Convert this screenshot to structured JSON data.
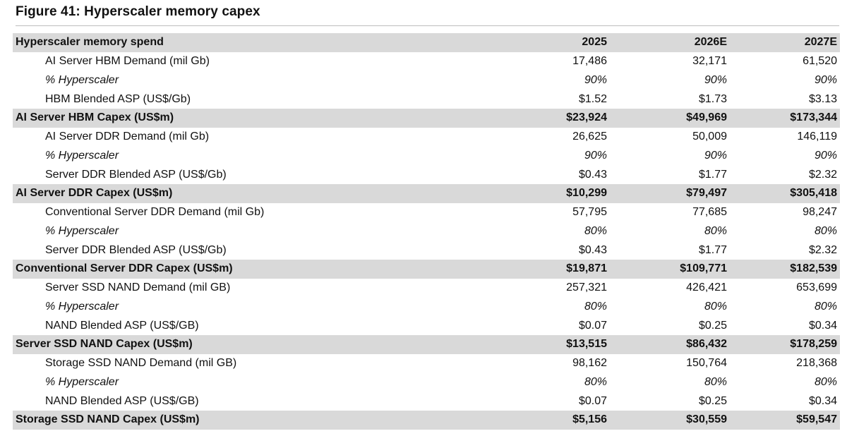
{
  "figure_title": "Figure 41: Hyperscaler memory capex",
  "table": {
    "header": {
      "label": "Hyperscaler memory spend",
      "years": [
        "2025",
        "2026E",
        "2027E"
      ]
    },
    "rows": [
      {
        "label": "AI Server HBM Demand (mil Gb)",
        "v": [
          "17,486",
          "32,171",
          "61,520"
        ]
      },
      {
        "label": "% Hyperscaler",
        "v": [
          "90%",
          "90%",
          "90%"
        ]
      },
      {
        "label": "HBM Blended ASP (US$/Gb)",
        "v": [
          "$1.52",
          "$1.73",
          "$3.13"
        ]
      },
      {
        "label": "AI Server HBM Capex (US$m)",
        "v": [
          "$23,924",
          "$49,969",
          "$173,344"
        ]
      },
      {
        "label": "AI Server DDR Demand (mil Gb)",
        "v": [
          "26,625",
          "50,009",
          "146,119"
        ]
      },
      {
        "label": "% Hyperscaler",
        "v": [
          "90%",
          "90%",
          "90%"
        ]
      },
      {
        "label": "Server DDR Blended ASP (US$/Gb)",
        "v": [
          "$0.43",
          "$1.77",
          "$2.32"
        ]
      },
      {
        "label": "AI Server DDR Capex (US$m)",
        "v": [
          "$10,299",
          "$79,497",
          "$305,418"
        ]
      },
      {
        "label": "Conventional Server DDR Demand (mil Gb)",
        "v": [
          "57,795",
          "77,685",
          "98,247"
        ]
      },
      {
        "label": "% Hyperscaler",
        "v": [
          "80%",
          "80%",
          "80%"
        ]
      },
      {
        "label": "Server DDR Blended ASP (US$/Gb)",
        "v": [
          "$0.43",
          "$1.77",
          "$2.32"
        ]
      },
      {
        "label": "Conventional Server DDR Capex (US$m)",
        "v": [
          "$19,871",
          "$109,771",
          "$182,539"
        ]
      },
      {
        "label": "Server SSD NAND Demand (mil GB)",
        "v": [
          "257,321",
          "426,421",
          "653,699"
        ]
      },
      {
        "label": "% Hyperscaler",
        "v": [
          "80%",
          "80%",
          "80%"
        ]
      },
      {
        "label": "NAND Blended ASP (US$/GB)",
        "v": [
          "$0.07",
          "$0.25",
          "$0.34"
        ]
      },
      {
        "label": "Server SSD NAND Capex (US$m)",
        "v": [
          "$13,515",
          "$86,432",
          "$178,259"
        ]
      },
      {
        "label": "Storage SSD NAND Demand (mil GB)",
        "v": [
          "98,162",
          "150,764",
          "218,368"
        ]
      },
      {
        "label": "% Hyperscaler",
        "v": [
          "80%",
          "80%",
          "80%"
        ]
      },
      {
        "label": "NAND Blended ASP (US$/GB)",
        "v": [
          "$0.07",
          "$0.25",
          "$0.34"
        ]
      },
      {
        "label": "Storage SSD NAND Capex (US$m)",
        "v": [
          "$5,156",
          "$30,559",
          "$59,547"
        ]
      }
    ]
  },
  "colors": {
    "header_fill": "#d9d9d9",
    "rule": "#bdbdbd",
    "text": "#111111"
  }
}
